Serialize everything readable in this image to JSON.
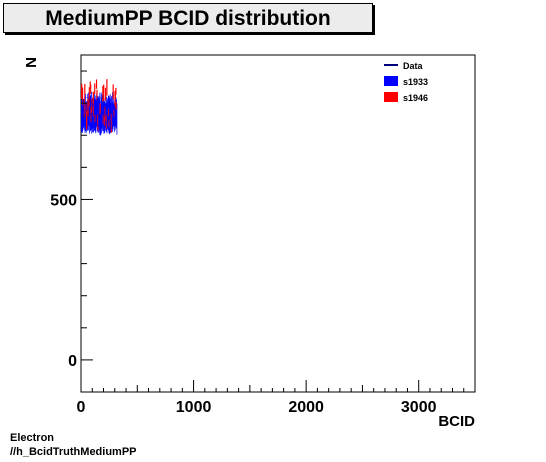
{
  "title": "MediumPP BCID  distribution",
  "footer": {
    "line1": "Electron",
    "line2": "//h_BcidTruthMediumPP"
  },
  "chart_data": {
    "type": "bar",
    "title": "MediumPP BCID  distribution",
    "xlabel": "BCID",
    "ylabel": "N",
    "xlim": [
      0,
      3500
    ],
    "ylim": [
      -100,
      950
    ],
    "x_ticks": [
      0,
      1000,
      2000,
      3000
    ],
    "y_ticks": [
      0,
      500
    ],
    "legend_position": "top-right",
    "colors": {
      "data": "#00007f",
      "s1933": "#0000ff",
      "s1946": "#ff0000"
    },
    "x_range_filled": [
      0,
      320
    ],
    "series": [
      {
        "name": "Data",
        "kind": "line",
        "mean": 775,
        "spread": 60
      },
      {
        "name": "s1933",
        "kind": "fill",
        "mean": 770,
        "spread": 65
      },
      {
        "name": "s1946",
        "kind": "fill",
        "mean": 780,
        "spread": 80
      }
    ]
  }
}
